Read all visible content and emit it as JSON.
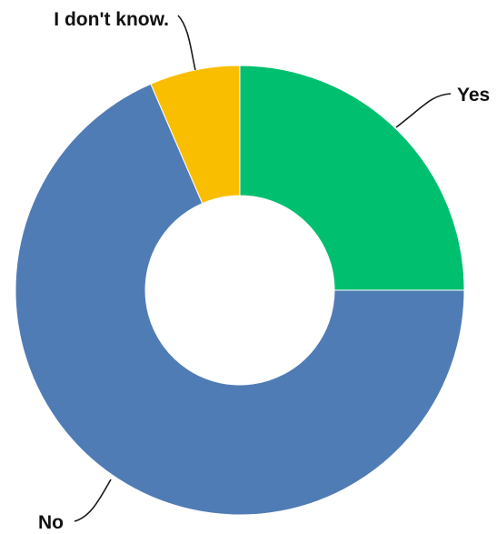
{
  "chart_data": {
    "type": "pie",
    "title": "",
    "donut": true,
    "slices": [
      {
        "label": "Yes",
        "value": 25,
        "color": "#00BF6F"
      },
      {
        "label": "No",
        "value": 68.5,
        "color": "#507CB6"
      },
      {
        "label": "I don't know.",
        "value": 6.5,
        "color": "#F9BE00"
      }
    ],
    "start": "12 o'clock",
    "direction": "clockwise"
  }
}
